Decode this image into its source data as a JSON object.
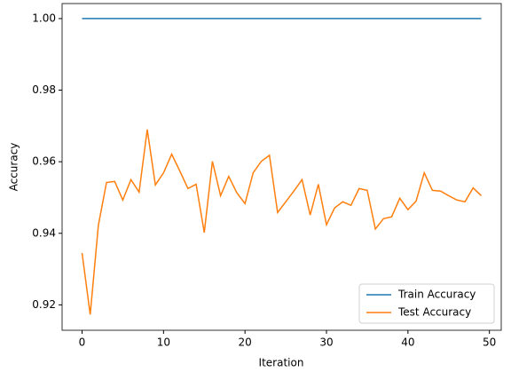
{
  "chart_data": {
    "type": "line",
    "x_label": "Iteration",
    "y_label": "Accuracy",
    "x": [
      0,
      1,
      2,
      3,
      4,
      5,
      6,
      7,
      8,
      9,
      10,
      11,
      12,
      13,
      14,
      15,
      16,
      17,
      18,
      19,
      20,
      21,
      22,
      23,
      24,
      25,
      26,
      27,
      28,
      29,
      30,
      31,
      32,
      33,
      34,
      35,
      36,
      37,
      38,
      39,
      40,
      41,
      42,
      43,
      44,
      45,
      46,
      47,
      48,
      49
    ],
    "series": [
      {
        "name": "Train Accuracy",
        "color": "#1f77b4",
        "values": [
          1.0,
          1.0,
          1.0,
          1.0,
          1.0,
          1.0,
          1.0,
          1.0,
          1.0,
          1.0,
          1.0,
          1.0,
          1.0,
          1.0,
          1.0,
          1.0,
          1.0,
          1.0,
          1.0,
          1.0,
          1.0,
          1.0,
          1.0,
          1.0,
          1.0,
          1.0,
          1.0,
          1.0,
          1.0,
          1.0,
          1.0,
          1.0,
          1.0,
          1.0,
          1.0,
          1.0,
          1.0,
          1.0,
          1.0,
          1.0,
          1.0,
          1.0,
          1.0,
          1.0,
          1.0,
          1.0,
          1.0,
          1.0,
          1.0,
          1.0
        ]
      },
      {
        "name": "Test Accuracy",
        "color": "#ff7f0e",
        "values": [
          0.9345,
          0.9173,
          0.9422,
          0.9542,
          0.9545,
          0.9493,
          0.955,
          0.9515,
          0.969,
          0.9535,
          0.9569,
          0.9621,
          0.9574,
          0.9525,
          0.9537,
          0.9402,
          0.9601,
          0.9505,
          0.9559,
          0.9513,
          0.9483,
          0.9569,
          0.9601,
          0.9618,
          0.9458,
          0.9488,
          0.9518,
          0.955,
          0.9451,
          0.9537,
          0.9424,
          0.9471,
          0.9488,
          0.9478,
          0.9525,
          0.952,
          0.9412,
          0.9441,
          0.9446,
          0.9498,
          0.9466,
          0.949,
          0.9569,
          0.952,
          0.9518,
          0.9505,
          0.9493,
          0.9488,
          0.9527,
          0.9505
        ]
      }
    ],
    "xlim": [
      -2.45,
      51.45
    ],
    "xticks": [
      0,
      10,
      20,
      30,
      40,
      50
    ],
    "ylim": [
      0.9129,
      1.0042
    ],
    "yticks": [
      0.92,
      0.94,
      0.96,
      0.98,
      {
        "value": 1.0,
        "label": "1.00"
      }
    ],
    "legend": "lower right"
  }
}
